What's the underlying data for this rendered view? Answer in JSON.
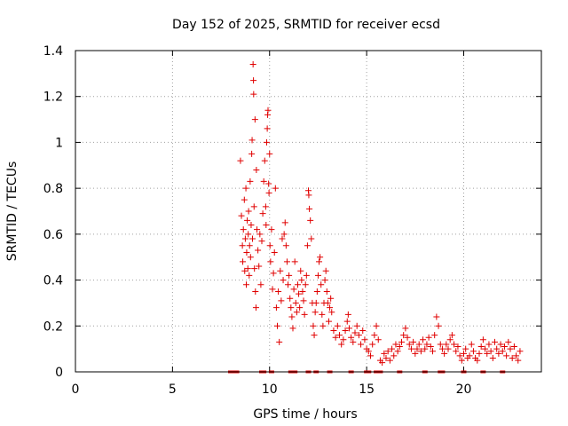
{
  "chart_data": {
    "type": "scatter",
    "title": "Day 152 of 2025, SRMTID for receiver ecsd",
    "xlabel": "GPS time / hours",
    "ylabel": "SRMTID / TECUs",
    "xlim": [
      0,
      24
    ],
    "ylim": [
      0,
      1.4
    ],
    "xticks": [
      0,
      5,
      10,
      15,
      20
    ],
    "xtick_labels": [
      "0",
      "5",
      "10",
      "15",
      "20"
    ],
    "yticks": [
      0,
      0.2,
      0.4,
      0.6,
      0.8,
      1.0,
      1.2,
      1.4
    ],
    "ytick_labels": [
      "0",
      "0.2",
      "0.4",
      "0.6",
      "0.8",
      "1",
      "1.2",
      "1.4"
    ],
    "grid": true,
    "marker": "+",
    "color": "#e00000",
    "series": [
      {
        "name": "SRMTID",
        "points": [
          [
            8.5,
            0.92
          ],
          [
            8.55,
            0.68
          ],
          [
            8.6,
            0.55
          ],
          [
            8.62,
            0.48
          ],
          [
            8.65,
            0.62
          ],
          [
            8.7,
            0.75
          ],
          [
            8.72,
            0.44
          ],
          [
            8.75,
            0.58
          ],
          [
            8.78,
            0.8
          ],
          [
            8.8,
            0.38
          ],
          [
            8.82,
            0.52
          ],
          [
            8.85,
            0.66
          ],
          [
            8.88,
            0.45
          ],
          [
            8.9,
            0.6
          ],
          [
            8.92,
            0.7
          ],
          [
            8.95,
            0.42
          ],
          [
            8.97,
            0.55
          ],
          [
            9.0,
            0.83
          ],
          [
            9.02,
            0.5
          ],
          [
            9.05,
            0.64
          ],
          [
            9.08,
            0.95
          ],
          [
            9.1,
            1.01
          ],
          [
            9.12,
            0.58
          ],
          [
            9.15,
            1.34
          ],
          [
            9.17,
            1.27
          ],
          [
            9.18,
            1.21
          ],
          [
            9.2,
            0.72
          ],
          [
            9.22,
            0.45
          ],
          [
            9.25,
            1.1
          ],
          [
            9.27,
            0.35
          ],
          [
            9.3,
            0.28
          ],
          [
            9.32,
            0.88
          ],
          [
            9.35,
            0.62
          ],
          [
            9.4,
            0.53
          ],
          [
            9.45,
            0.46
          ],
          [
            9.5,
            0.6
          ],
          [
            9.55,
            0.38
          ],
          [
            9.6,
            0.57
          ],
          [
            9.65,
            0.69
          ],
          [
            9.7,
            0.83
          ],
          [
            9.75,
            0.92
          ],
          [
            9.8,
            0.72
          ],
          [
            9.82,
            0.64
          ],
          [
            9.85,
            1.0
          ],
          [
            9.88,
            1.06
          ],
          [
            9.9,
            1.12
          ],
          [
            9.92,
            1.14
          ],
          [
            9.95,
            0.82
          ],
          [
            9.97,
            0.78
          ],
          [
            10.0,
            0.95
          ],
          [
            10.02,
            0.55
          ],
          [
            10.05,
            0.48
          ],
          [
            10.1,
            0.62
          ],
          [
            10.15,
            0.36
          ],
          [
            10.2,
            0.43
          ],
          [
            10.25,
            0.52
          ],
          [
            10.3,
            0.8
          ],
          [
            10.35,
            0.28
          ],
          [
            10.4,
            0.2
          ],
          [
            10.45,
            0.35
          ],
          [
            10.5,
            0.13
          ],
          [
            10.55,
            0.44
          ],
          [
            10.6,
            0.31
          ],
          [
            10.65,
            0.58
          ],
          [
            10.7,
            0.4
          ],
          [
            10.75,
            0.6
          ],
          [
            10.8,
            0.65
          ],
          [
            10.85,
            0.55
          ],
          [
            10.9,
            0.48
          ],
          [
            10.95,
            0.38
          ],
          [
            11.0,
            0.42
          ],
          [
            11.05,
            0.32
          ],
          [
            11.1,
            0.28
          ],
          [
            11.15,
            0.24
          ],
          [
            11.2,
            0.19
          ],
          [
            11.25,
            0.36
          ],
          [
            11.3,
            0.48
          ],
          [
            11.35,
            0.3
          ],
          [
            11.4,
            0.26
          ],
          [
            11.45,
            0.38
          ],
          [
            11.5,
            0.34
          ],
          [
            11.55,
            0.28
          ],
          [
            11.6,
            0.44
          ],
          [
            11.65,
            0.4
          ],
          [
            11.7,
            0.35
          ],
          [
            11.75,
            0.31
          ],
          [
            11.8,
            0.25
          ],
          [
            11.85,
            0.38
          ],
          [
            11.9,
            0.42
          ],
          [
            11.95,
            0.55
          ],
          [
            12.0,
            0.79
          ],
          [
            12.02,
            0.77
          ],
          [
            12.05,
            0.71
          ],
          [
            12.1,
            0.66
          ],
          [
            12.15,
            0.58
          ],
          [
            12.2,
            0.3
          ],
          [
            12.25,
            0.2
          ],
          [
            12.3,
            0.16
          ],
          [
            12.35,
            0.26
          ],
          [
            12.4,
            0.3
          ],
          [
            12.45,
            0.35
          ],
          [
            12.5,
            0.42
          ],
          [
            12.55,
            0.48
          ],
          [
            12.6,
            0.5
          ],
          [
            12.65,
            0.38
          ],
          [
            12.7,
            0.25
          ],
          [
            12.75,
            0.2
          ],
          [
            12.8,
            0.3
          ],
          [
            12.85,
            0.4
          ],
          [
            12.9,
            0.44
          ],
          [
            12.95,
            0.35
          ],
          [
            13.0,
            0.3
          ],
          [
            13.05,
            0.22
          ],
          [
            13.1,
            0.28
          ],
          [
            13.15,
            0.32
          ],
          [
            13.2,
            0.26
          ],
          [
            13.3,
            0.18
          ],
          [
            13.4,
            0.15
          ],
          [
            13.5,
            0.2
          ],
          [
            13.6,
            0.16
          ],
          [
            13.7,
            0.12
          ],
          [
            13.8,
            0.14
          ],
          [
            13.9,
            0.18
          ],
          [
            14.0,
            0.22
          ],
          [
            14.05,
            0.25
          ],
          [
            14.1,
            0.19
          ],
          [
            14.2,
            0.15
          ],
          [
            14.3,
            0.13
          ],
          [
            14.4,
            0.17
          ],
          [
            14.5,
            0.2
          ],
          [
            14.6,
            0.16
          ],
          [
            14.7,
            0.12
          ],
          [
            14.8,
            0.18
          ],
          [
            14.9,
            0.14
          ],
          [
            15.0,
            0.1
          ],
          [
            15.1,
            0.09
          ],
          [
            15.2,
            0.07
          ],
          [
            15.3,
            0.12
          ],
          [
            15.4,
            0.16
          ],
          [
            15.5,
            0.2
          ],
          [
            15.6,
            0.14
          ],
          [
            15.7,
            0.05
          ],
          [
            15.8,
            0.04
          ],
          [
            15.9,
            0.08
          ],
          [
            16.0,
            0.06
          ],
          [
            16.1,
            0.09
          ],
          [
            16.2,
            0.05
          ],
          [
            16.3,
            0.1
          ],
          [
            16.4,
            0.07
          ],
          [
            16.5,
            0.12
          ],
          [
            16.6,
            0.09
          ],
          [
            16.7,
            0.11
          ],
          [
            16.8,
            0.13
          ],
          [
            16.9,
            0.16
          ],
          [
            17.0,
            0.19
          ],
          [
            17.1,
            0.15
          ],
          [
            17.2,
            0.12
          ],
          [
            17.3,
            0.1
          ],
          [
            17.4,
            0.13
          ],
          [
            17.5,
            0.08
          ],
          [
            17.6,
            0.1
          ],
          [
            17.7,
            0.12
          ],
          [
            17.8,
            0.09
          ],
          [
            17.9,
            0.14
          ],
          [
            18.0,
            0.1
          ],
          [
            18.1,
            0.12
          ],
          [
            18.2,
            0.15
          ],
          [
            18.3,
            0.11
          ],
          [
            18.4,
            0.09
          ],
          [
            18.5,
            0.16
          ],
          [
            18.6,
            0.24
          ],
          [
            18.7,
            0.2
          ],
          [
            18.8,
            0.12
          ],
          [
            18.9,
            0.1
          ],
          [
            19.0,
            0.08
          ],
          [
            19.1,
            0.12
          ],
          [
            19.2,
            0.1
          ],
          [
            19.3,
            0.14
          ],
          [
            19.4,
            0.16
          ],
          [
            19.5,
            0.12
          ],
          [
            19.6,
            0.09
          ],
          [
            19.7,
            0.11
          ],
          [
            19.8,
            0.07
          ],
          [
            19.9,
            0.05
          ],
          [
            20.0,
            0.08
          ],
          [
            20.1,
            0.1
          ],
          [
            20.2,
            0.06
          ],
          [
            20.3,
            0.07
          ],
          [
            20.4,
            0.12
          ],
          [
            20.5,
            0.09
          ],
          [
            20.6,
            0.06
          ],
          [
            20.7,
            0.05
          ],
          [
            20.8,
            0.08
          ],
          [
            20.9,
            0.11
          ],
          [
            21.0,
            0.14
          ],
          [
            21.1,
            0.1
          ],
          [
            21.2,
            0.08
          ],
          [
            21.3,
            0.12
          ],
          [
            21.4,
            0.09
          ],
          [
            21.5,
            0.06
          ],
          [
            21.6,
            0.13
          ],
          [
            21.7,
            0.1
          ],
          [
            21.8,
            0.08
          ],
          [
            21.9,
            0.12
          ],
          [
            22.0,
            0.09
          ],
          [
            22.1,
            0.11
          ],
          [
            22.2,
            0.07
          ],
          [
            22.3,
            0.13
          ],
          [
            22.4,
            0.1
          ],
          [
            22.5,
            0.06
          ],
          [
            22.6,
            0.11
          ],
          [
            22.7,
            0.07
          ],
          [
            22.8,
            0.05
          ],
          [
            22.9,
            0.09
          ]
        ]
      }
    ],
    "zero_markers_x": [
      8.0,
      8.1,
      8.2,
      8.3,
      9.6,
      9.7,
      10.1,
      11.1,
      11.3,
      12.0,
      12.4,
      13.1,
      14.2,
      15.0,
      15.1,
      15.5,
      15.7,
      16.7,
      18.0,
      18.8,
      18.9,
      20.0,
      21.0,
      22.0
    ]
  }
}
